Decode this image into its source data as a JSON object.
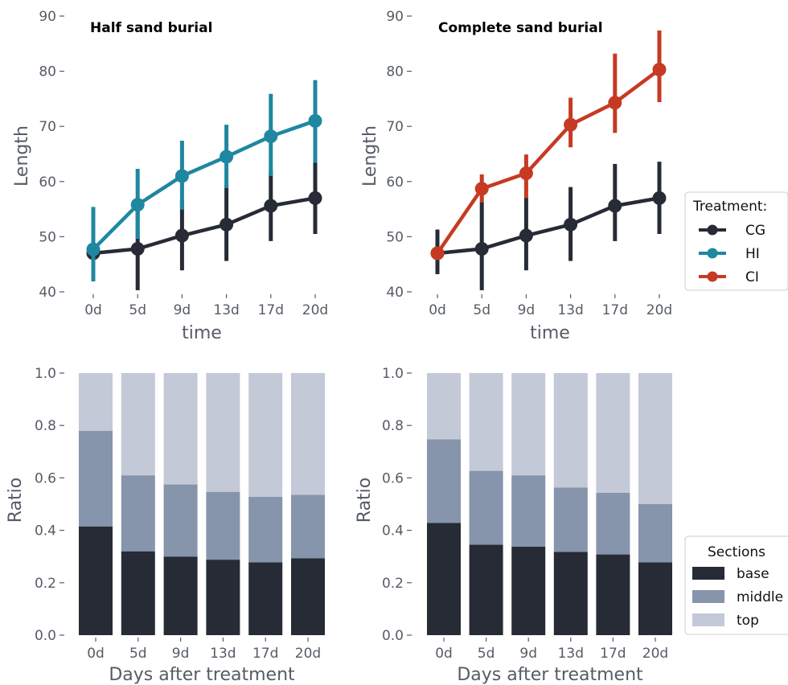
{
  "colors": {
    "CG": "#262b36",
    "HI": "#1f87a0",
    "CI": "#c63a23",
    "base": "#262b36",
    "middle": "#8694ac",
    "top": "#c3c9d6",
    "tick_text": "#555c66"
  },
  "legend_treatment": {
    "title": "Treatment:",
    "items": [
      {
        "label": "CG",
        "color_key": "CG"
      },
      {
        "label": "HI",
        "color_key": "HI"
      },
      {
        "label": "CI",
        "color_key": "CI"
      }
    ]
  },
  "legend_sections": {
    "title": "Sections",
    "items": [
      {
        "label": "base",
        "color_key": "base"
      },
      {
        "label": "middle",
        "color_key": "middle"
      },
      {
        "label": "top",
        "color_key": "top"
      }
    ]
  },
  "chart_data": [
    {
      "type": "line",
      "title": "Half sand burial",
      "xlabel": "time",
      "ylabel": "Length",
      "categories": [
        "0d",
        "5d",
        "9d",
        "13d",
        "17d",
        "20d"
      ],
      "ylim": [
        40,
        90
      ],
      "yticks": [
        40,
        50,
        60,
        70,
        80,
        90
      ],
      "grid": false,
      "series": [
        {
          "name": "CG",
          "color_key": "CG",
          "values": [
            47.0,
            47.8,
            50.2,
            52.2,
            55.6,
            57.0
          ],
          "err_low": [
            43.2,
            40.3,
            43.9,
            45.6,
            49.2,
            50.5
          ],
          "err_high": [
            51.3,
            55.6,
            56.6,
            59.4,
            62.0,
            63.6
          ]
        },
        {
          "name": "HI",
          "color_key": "HI",
          "values": [
            47.7,
            55.8,
            61.0,
            64.5,
            68.2,
            71.0
          ],
          "err_low": [
            41.9,
            49.6,
            54.9,
            58.8,
            61.0,
            63.4
          ],
          "err_high": [
            55.4,
            62.3,
            67.4,
            70.3,
            75.9,
            78.4
          ]
        }
      ]
    },
    {
      "type": "line",
      "title": "Complete sand burial",
      "xlabel": "time",
      "ylabel": "Length",
      "categories": [
        "0d",
        "5d",
        "9d",
        "13d",
        "17d",
        "20d"
      ],
      "ylim": [
        40,
        90
      ],
      "yticks": [
        40,
        50,
        60,
        70,
        80,
        90
      ],
      "grid": false,
      "series": [
        {
          "name": "CG",
          "color_key": "CG",
          "values": [
            47.0,
            47.8,
            50.2,
            52.2,
            55.6,
            57.0
          ],
          "err_low": [
            43.2,
            40.3,
            43.9,
            45.6,
            49.2,
            50.5
          ],
          "err_high": [
            51.3,
            56.3,
            57.1,
            59.0,
            63.2,
            63.6
          ]
        },
        {
          "name": "CI",
          "color_key": "CI",
          "values": [
            47.0,
            58.7,
            61.5,
            70.3,
            74.3,
            80.3
          ],
          "err_low": [
            46.4,
            56.2,
            57.0,
            66.2,
            68.8,
            74.4
          ],
          "err_high": [
            47.6,
            61.3,
            64.9,
            75.2,
            83.2,
            87.4
          ]
        }
      ]
    },
    {
      "type": "bar",
      "stacked": true,
      "title": "",
      "xlabel": "Days after treatment",
      "ylabel": "Ratio",
      "categories": [
        "0d",
        "5d",
        "9d",
        "13d",
        "17d",
        "20d"
      ],
      "ylim": [
        0,
        1
      ],
      "yticks": [
        "0.0",
        "0.2",
        "0.4",
        "0.6",
        "0.8",
        "1.0"
      ],
      "grid": false,
      "series": [
        {
          "name": "base",
          "color_key": "base",
          "values": [
            0.415,
            0.32,
            0.3,
            0.288,
            0.278,
            0.293
          ]
        },
        {
          "name": "middle",
          "color_key": "middle",
          "values": [
            0.365,
            0.29,
            0.275,
            0.259,
            0.25,
            0.243
          ]
        },
        {
          "name": "top",
          "color_key": "top",
          "values": [
            0.22,
            0.39,
            0.425,
            0.453,
            0.472,
            0.464
          ]
        }
      ]
    },
    {
      "type": "bar",
      "stacked": true,
      "title": "",
      "xlabel": "Days after treatment",
      "ylabel": "Ratio",
      "categories": [
        "0d",
        "5d",
        "9d",
        "13d",
        "17d",
        "20d"
      ],
      "ylim": [
        0,
        1
      ],
      "yticks": [
        "0.0",
        "0.2",
        "0.4",
        "0.6",
        "0.8",
        "1.0"
      ],
      "grid": false,
      "series": [
        {
          "name": "base",
          "color_key": "base",
          "values": [
            0.428,
            0.345,
            0.338,
            0.318,
            0.308,
            0.278
          ]
        },
        {
          "name": "middle",
          "color_key": "middle",
          "values": [
            0.319,
            0.282,
            0.272,
            0.245,
            0.235,
            0.222
          ]
        },
        {
          "name": "top",
          "color_key": "top",
          "values": [
            0.253,
            0.373,
            0.39,
            0.437,
            0.457,
            0.5
          ]
        }
      ]
    }
  ]
}
